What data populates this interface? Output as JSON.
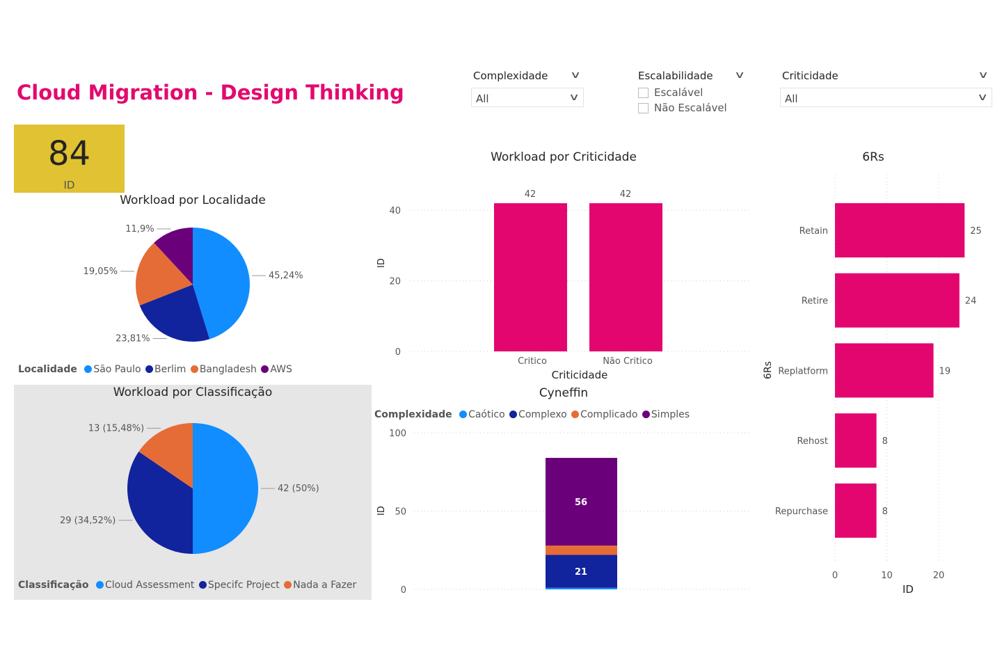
{
  "title": "Cloud Migration - Design Thinking",
  "kpi": {
    "value": "84",
    "label": "ID",
    "color": "#E0C232"
  },
  "slicers": {
    "complexidade": {
      "title": "Complexidade",
      "value": "All"
    },
    "escalabilidade": {
      "title": "Escalabilidade",
      "options": [
        "Escalável",
        "Não Escalável"
      ]
    },
    "criticidade": {
      "title": "Criticidade",
      "value": "All"
    }
  },
  "colors": {
    "accent": "#E3096F",
    "blue": "#118DFF",
    "dark_blue": "#12239E",
    "orange": "#E66C37",
    "purple": "#6B007B",
    "bar": "#E3066F"
  },
  "chart_data": [
    {
      "type": "pie",
      "title": "Workload por Localidade",
      "legend_title": "Localidade",
      "legend_position": "bottom-left",
      "categories": [
        "São Paulo",
        "Berlim",
        "Bangladesh",
        "AWS"
      ],
      "values": [
        45.24,
        23.81,
        19.05,
        11.9
      ],
      "labels": [
        "45,24%",
        "23,81%",
        "19,05%",
        "11,9%"
      ]
    },
    {
      "type": "bar",
      "title": "Workload por Criticidade",
      "xlabel": "Criticidade",
      "ylabel": "ID",
      "categories": [
        "Critico",
        "Não Critico"
      ],
      "values": [
        42,
        42
      ],
      "ylim": [
        0,
        45
      ],
      "yticks": [
        "0",
        "20",
        "40"
      ],
      "grid": true
    },
    {
      "type": "bar",
      "title": "Cyneffin",
      "stacked": true,
      "xlabel": "",
      "ylabel": "ID",
      "legend_title": "Complexidade",
      "legend_position": "top-left",
      "series": [
        {
          "name": "Caótico",
          "values": [
            1
          ]
        },
        {
          "name": "Complexo",
          "values": [
            21
          ],
          "label": "21"
        },
        {
          "name": "Complicado",
          "values": [
            6
          ]
        },
        {
          "name": "Simples",
          "values": [
            56
          ],
          "label": "56"
        }
      ],
      "ylim": [
        0,
        100
      ],
      "yticks": [
        "0",
        "50",
        "100"
      ],
      "grid": true
    },
    {
      "type": "bar",
      "orientation": "horizontal",
      "title": "6Rs",
      "xlabel": "ID",
      "ylabel": "6Rs",
      "categories": [
        "Retain",
        "Retire",
        "Replatform",
        "Rehost",
        "Repurchase"
      ],
      "values": [
        25,
        24,
        19,
        8,
        8
      ],
      "xticks": [
        "0",
        "10",
        "20"
      ],
      "grid": true
    },
    {
      "type": "pie",
      "title": "Workload por Classificação",
      "legend_title": "Classificação",
      "legend_position": "bottom-left",
      "categories": [
        "Cloud Assessment",
        "Specifc Project",
        "Nada a Fazer"
      ],
      "values": [
        42,
        29,
        13
      ],
      "labels": [
        "42 (50%)",
        "29 (34,52%)",
        "13 (15,48%)"
      ]
    }
  ]
}
